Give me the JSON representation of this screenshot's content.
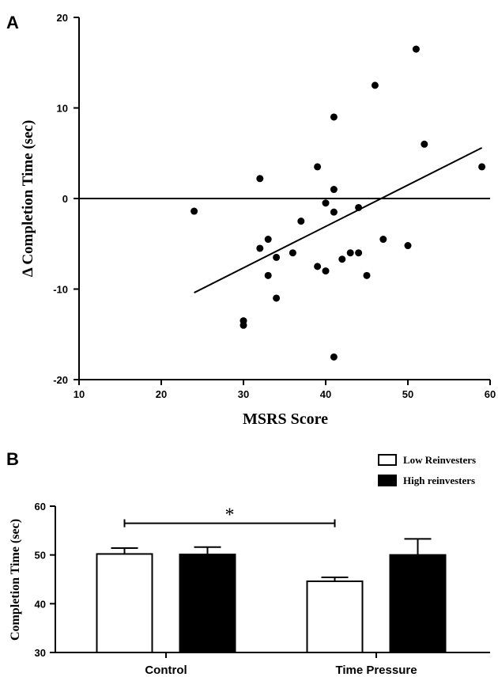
{
  "chart_data": [
    {
      "panel": "A",
      "type": "scatter",
      "xlabel": "MSRS Score",
      "ylabel": "Δ Completion Time (sec)",
      "xlim": [
        10,
        60
      ],
      "ylim": [
        -20,
        20
      ],
      "xticks": [
        10,
        20,
        30,
        40,
        50,
        60
      ],
      "yticks": [
        -20,
        -10,
        0,
        10,
        20
      ],
      "grid": false,
      "points": [
        {
          "x": 24,
          "y": -1.4
        },
        {
          "x": 30,
          "y": -13.5
        },
        {
          "x": 30,
          "y": -14.0
        },
        {
          "x": 32,
          "y": 2.2
        },
        {
          "x": 32,
          "y": -5.5
        },
        {
          "x": 33,
          "y": -4.5
        },
        {
          "x": 33,
          "y": -8.5
        },
        {
          "x": 34,
          "y": -6.5
        },
        {
          "x": 34,
          "y": -11.0
        },
        {
          "x": 36,
          "y": -6.0
        },
        {
          "x": 37,
          "y": -2.5
        },
        {
          "x": 39,
          "y": 3.5
        },
        {
          "x": 39,
          "y": -7.5
        },
        {
          "x": 40,
          "y": -0.5
        },
        {
          "x": 40,
          "y": -8.0
        },
        {
          "x": 41,
          "y": 9.0
        },
        {
          "x": 41,
          "y": 1.0
        },
        {
          "x": 41,
          "y": -1.5
        },
        {
          "x": 41,
          "y": -17.5
        },
        {
          "x": 42,
          "y": -6.7
        },
        {
          "x": 43,
          "y": -6.0
        },
        {
          "x": 44,
          "y": -1.0
        },
        {
          "x": 44,
          "y": -6.0
        },
        {
          "x": 45,
          "y": -8.5
        },
        {
          "x": 46,
          "y": 12.5
        },
        {
          "x": 47,
          "y": -4.5
        },
        {
          "x": 50,
          "y": -5.2
        },
        {
          "x": 51,
          "y": 16.5
        },
        {
          "x": 52,
          "y": 6.0
        },
        {
          "x": 59,
          "y": 3.5
        }
      ],
      "regression_line": {
        "x1": 24,
        "y1": -10.4,
        "x2": 59,
        "y2": 5.6
      },
      "reference_line_y": 0
    },
    {
      "panel": "B",
      "type": "bar",
      "xlabel": "",
      "ylabel": "Completion Time (sec)",
      "ylim": [
        30,
        60
      ],
      "yticks": [
        30,
        40,
        50,
        60
      ],
      "categories": [
        "Control",
        "Time Pressure"
      ],
      "series": [
        {
          "name": "Low Reinvesters",
          "fill": "#ffffff",
          "values": [
            50.2,
            44.6
          ],
          "errors": [
            1.2,
            0.8
          ]
        },
        {
          "name": "High reinvesters",
          "fill": "#000000",
          "values": [
            50.1,
            50.0
          ],
          "errors": [
            1.5,
            3.3
          ]
        }
      ],
      "legend_position": "top-right",
      "significance": {
        "label": "*",
        "from": "Control / Low Reinvesters",
        "to": "Time Pressure / Low Reinvesters",
        "y": 56.5
      }
    }
  ],
  "colors": {
    "ink": "#000000",
    "background": "#ffffff"
  }
}
